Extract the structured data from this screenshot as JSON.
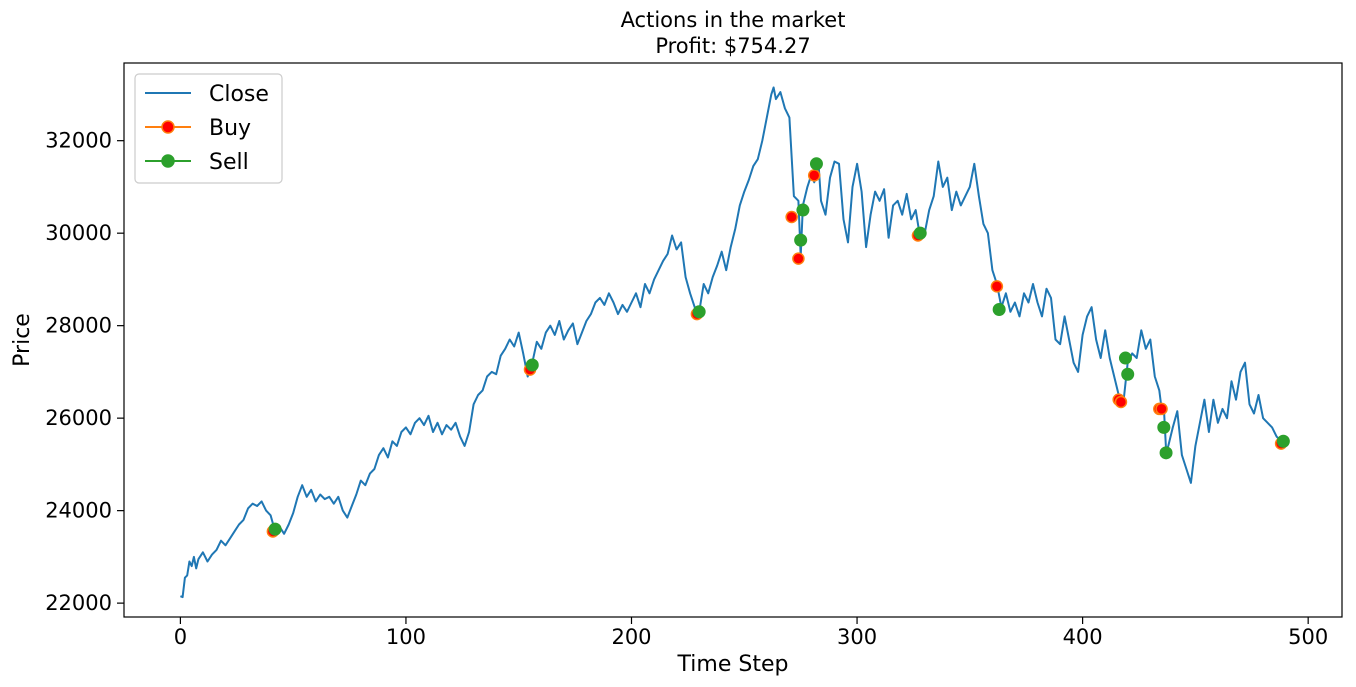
{
  "chart_data": {
    "type": "line",
    "title": "Actions in the market",
    "subtitle": "Profit: $754.27",
    "xlabel": "Time Step",
    "ylabel": "Price",
    "xlim": [
      -25,
      515
    ],
    "ylim": [
      21700,
      33680
    ],
    "xticks": [
      0,
      100,
      200,
      300,
      400,
      500
    ],
    "yticks": [
      22000,
      24000,
      26000,
      28000,
      30000,
      32000
    ],
    "legend": {
      "position": "top-left",
      "entries": [
        {
          "label": "Close",
          "kind": "line",
          "color": "#1f77b4"
        },
        {
          "label": "Buy",
          "kind": "marker",
          "color": "#ff0000",
          "edge": "#ff7f0e"
        },
        {
          "label": "Sell",
          "kind": "marker",
          "color": "#2ca02c",
          "edge": "#2ca02c"
        }
      ]
    },
    "series": [
      {
        "name": "Close",
        "color": "#1f77b4",
        "points": [
          [
            0,
            22150
          ],
          [
            1,
            22130
          ],
          [
            2,
            22550
          ],
          [
            3,
            22600
          ],
          [
            4,
            22900
          ],
          [
            5,
            22800
          ],
          [
            6,
            23000
          ],
          [
            7,
            22750
          ],
          [
            8,
            22950
          ],
          [
            10,
            23100
          ],
          [
            12,
            22900
          ],
          [
            14,
            23050
          ],
          [
            16,
            23150
          ],
          [
            18,
            23350
          ],
          [
            20,
            23250
          ],
          [
            22,
            23400
          ],
          [
            24,
            23550
          ],
          [
            26,
            23700
          ],
          [
            28,
            23800
          ],
          [
            30,
            24050
          ],
          [
            32,
            24150
          ],
          [
            34,
            24100
          ],
          [
            36,
            24200
          ],
          [
            38,
            24000
          ],
          [
            40,
            23900
          ],
          [
            42,
            23550
          ],
          [
            44,
            23650
          ],
          [
            46,
            23500
          ],
          [
            48,
            23700
          ],
          [
            50,
            23950
          ],
          [
            52,
            24300
          ],
          [
            54,
            24550
          ],
          [
            56,
            24300
          ],
          [
            58,
            24450
          ],
          [
            60,
            24200
          ],
          [
            62,
            24350
          ],
          [
            64,
            24250
          ],
          [
            66,
            24300
          ],
          [
            68,
            24150
          ],
          [
            70,
            24300
          ],
          [
            72,
            24000
          ],
          [
            74,
            23850
          ],
          [
            76,
            24100
          ],
          [
            78,
            24350
          ],
          [
            80,
            24650
          ],
          [
            82,
            24550
          ],
          [
            84,
            24800
          ],
          [
            86,
            24900
          ],
          [
            88,
            25200
          ],
          [
            90,
            25350
          ],
          [
            92,
            25150
          ],
          [
            94,
            25500
          ],
          [
            96,
            25400
          ],
          [
            98,
            25700
          ],
          [
            100,
            25800
          ],
          [
            102,
            25650
          ],
          [
            104,
            25900
          ],
          [
            106,
            26000
          ],
          [
            108,
            25850
          ],
          [
            110,
            26050
          ],
          [
            112,
            25700
          ],
          [
            114,
            25900
          ],
          [
            116,
            25650
          ],
          [
            118,
            25850
          ],
          [
            120,
            25750
          ],
          [
            122,
            25900
          ],
          [
            124,
            25600
          ],
          [
            126,
            25400
          ],
          [
            128,
            25700
          ],
          [
            130,
            26300
          ],
          [
            132,
            26500
          ],
          [
            134,
            26600
          ],
          [
            136,
            26900
          ],
          [
            138,
            27000
          ],
          [
            140,
            26950
          ],
          [
            142,
            27350
          ],
          [
            144,
            27500
          ],
          [
            146,
            27700
          ],
          [
            148,
            27550
          ],
          [
            150,
            27850
          ],
          [
            152,
            27400
          ],
          [
            154,
            26900
          ],
          [
            155,
            27050
          ],
          [
            156,
            27200
          ],
          [
            158,
            27650
          ],
          [
            160,
            27500
          ],
          [
            162,
            27850
          ],
          [
            164,
            28000
          ],
          [
            166,
            27800
          ],
          [
            168,
            28100
          ],
          [
            170,
            27700
          ],
          [
            172,
            27900
          ],
          [
            174,
            28050
          ],
          [
            176,
            27600
          ],
          [
            178,
            27850
          ],
          [
            180,
            28100
          ],
          [
            182,
            28250
          ],
          [
            184,
            28500
          ],
          [
            186,
            28600
          ],
          [
            188,
            28450
          ],
          [
            190,
            28700
          ],
          [
            192,
            28500
          ],
          [
            194,
            28250
          ],
          [
            196,
            28450
          ],
          [
            198,
            28300
          ],
          [
            200,
            28500
          ],
          [
            202,
            28700
          ],
          [
            204,
            28400
          ],
          [
            206,
            28900
          ],
          [
            208,
            28700
          ],
          [
            210,
            29000
          ],
          [
            212,
            29200
          ],
          [
            214,
            29400
          ],
          [
            216,
            29550
          ],
          [
            218,
            29950
          ],
          [
            220,
            29650
          ],
          [
            222,
            29800
          ],
          [
            224,
            29050
          ],
          [
            226,
            28700
          ],
          [
            228,
            28400
          ],
          [
            229,
            28200
          ],
          [
            230,
            28300
          ],
          [
            232,
            28900
          ],
          [
            234,
            28700
          ],
          [
            236,
            29050
          ],
          [
            238,
            29300
          ],
          [
            240,
            29600
          ],
          [
            242,
            29200
          ],
          [
            244,
            29700
          ],
          [
            246,
            30100
          ],
          [
            248,
            30600
          ],
          [
            250,
            30900
          ],
          [
            252,
            31150
          ],
          [
            254,
            31450
          ],
          [
            256,
            31600
          ],
          [
            258,
            32000
          ],
          [
            260,
            32500
          ],
          [
            262,
            33000
          ],
          [
            263,
            33150
          ],
          [
            264,
            32900
          ],
          [
            266,
            33050
          ],
          [
            268,
            32700
          ],
          [
            270,
            32500
          ],
          [
            272,
            30800
          ],
          [
            274,
            30700
          ],
          [
            275,
            29500
          ],
          [
            276,
            30600
          ],
          [
            278,
            31000
          ],
          [
            280,
            31300
          ],
          [
            281,
            31100
          ],
          [
            283,
            31450
          ],
          [
            284,
            30700
          ],
          [
            286,
            30400
          ],
          [
            288,
            31200
          ],
          [
            290,
            31550
          ],
          [
            292,
            31500
          ],
          [
            294,
            30300
          ],
          [
            296,
            29800
          ],
          [
            298,
            31000
          ],
          [
            300,
            31500
          ],
          [
            302,
            30900
          ],
          [
            304,
            29700
          ],
          [
            306,
            30400
          ],
          [
            308,
            30900
          ],
          [
            310,
            30700
          ],
          [
            312,
            30950
          ],
          [
            314,
            29900
          ],
          [
            316,
            30600
          ],
          [
            318,
            30700
          ],
          [
            320,
            30400
          ],
          [
            322,
            30850
          ],
          [
            324,
            30300
          ],
          [
            326,
            30500
          ],
          [
            328,
            29900
          ],
          [
            330,
            30000
          ],
          [
            332,
            30500
          ],
          [
            334,
            30800
          ],
          [
            336,
            31550
          ],
          [
            338,
            31000
          ],
          [
            340,
            31200
          ],
          [
            342,
            30500
          ],
          [
            344,
            30900
          ],
          [
            346,
            30600
          ],
          [
            348,
            30800
          ],
          [
            350,
            31000
          ],
          [
            352,
            31500
          ],
          [
            354,
            30800
          ],
          [
            356,
            30200
          ],
          [
            358,
            30000
          ],
          [
            360,
            29200
          ],
          [
            362,
            28900
          ],
          [
            364,
            28400
          ],
          [
            366,
            28700
          ],
          [
            368,
            28300
          ],
          [
            370,
            28500
          ],
          [
            372,
            28200
          ],
          [
            374,
            28700
          ],
          [
            376,
            28500
          ],
          [
            378,
            28900
          ],
          [
            380,
            28500
          ],
          [
            382,
            28200
          ],
          [
            384,
            28800
          ],
          [
            386,
            28600
          ],
          [
            388,
            27700
          ],
          [
            390,
            27600
          ],
          [
            392,
            28200
          ],
          [
            394,
            27700
          ],
          [
            396,
            27200
          ],
          [
            398,
            27000
          ],
          [
            400,
            27800
          ],
          [
            402,
            28200
          ],
          [
            404,
            28400
          ],
          [
            406,
            27700
          ],
          [
            408,
            27300
          ],
          [
            410,
            27900
          ],
          [
            412,
            27300
          ],
          [
            414,
            26900
          ],
          [
            416,
            26500
          ],
          [
            418,
            26300
          ],
          [
            420,
            27200
          ],
          [
            422,
            27400
          ],
          [
            424,
            27300
          ],
          [
            426,
            27900
          ],
          [
            428,
            27500
          ],
          [
            430,
            27700
          ],
          [
            432,
            26900
          ],
          [
            434,
            26600
          ],
          [
            435,
            26200
          ],
          [
            436,
            26250
          ],
          [
            437,
            25300
          ],
          [
            438,
            25400
          ],
          [
            440,
            25800
          ],
          [
            442,
            26150
          ],
          [
            444,
            25200
          ],
          [
            446,
            24900
          ],
          [
            448,
            24600
          ],
          [
            450,
            25400
          ],
          [
            452,
            25900
          ],
          [
            454,
            26400
          ],
          [
            456,
            25700
          ],
          [
            458,
            26400
          ],
          [
            460,
            25900
          ],
          [
            462,
            26200
          ],
          [
            464,
            26000
          ],
          [
            466,
            26800
          ],
          [
            468,
            26400
          ],
          [
            470,
            27000
          ],
          [
            472,
            27200
          ],
          [
            474,
            26300
          ],
          [
            476,
            26100
          ],
          [
            478,
            26500
          ],
          [
            480,
            26000
          ],
          [
            482,
            25900
          ],
          [
            484,
            25800
          ],
          [
            486,
            25600
          ],
          [
            488,
            25500
          ],
          [
            490,
            25450
          ]
        ]
      },
      {
        "name": "Buy",
        "color": "#ff0000",
        "points": [
          [
            41,
            23550
          ],
          [
            155,
            27050
          ],
          [
            229,
            28250
          ],
          [
            271,
            30350
          ],
          [
            274,
            29450
          ],
          [
            281,
            31250
          ],
          [
            327,
            29950
          ],
          [
            362,
            28850
          ],
          [
            416,
            26400
          ],
          [
            417,
            26350
          ],
          [
            434,
            26200
          ],
          [
            435,
            26200
          ],
          [
            488,
            25450
          ]
        ]
      },
      {
        "name": "Sell",
        "color": "#2ca02c",
        "points": [
          [
            42,
            23600
          ],
          [
            156,
            27150
          ],
          [
            230,
            28300
          ],
          [
            275,
            29850
          ],
          [
            276,
            30500
          ],
          [
            282,
            31500
          ],
          [
            328,
            30000
          ],
          [
            363,
            28350
          ],
          [
            419,
            27300
          ],
          [
            420,
            26950
          ],
          [
            436,
            25800
          ],
          [
            437,
            25250
          ],
          [
            489,
            25500
          ]
        ]
      }
    ]
  }
}
